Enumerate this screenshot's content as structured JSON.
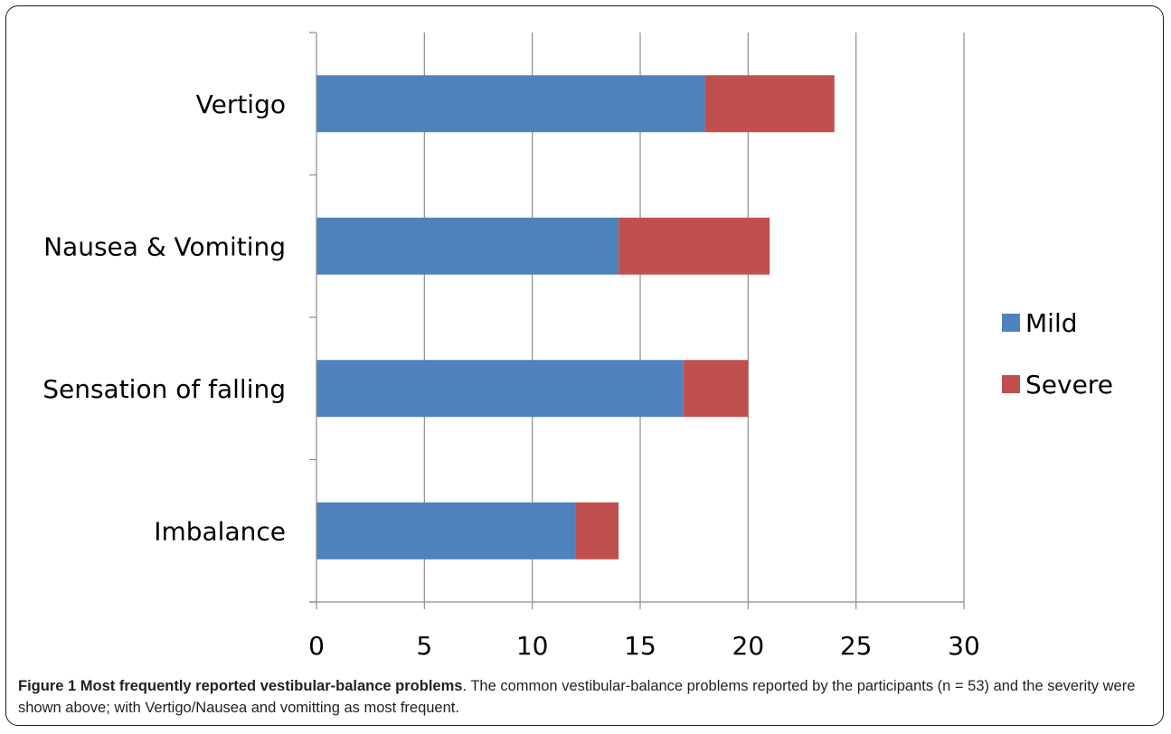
{
  "chart_data": {
    "type": "bar",
    "orientation": "horizontal",
    "stacked": true,
    "categories": [
      "Vertigo",
      "Nausea & Vomiting",
      "Sensation of falling",
      "Imbalance"
    ],
    "series": [
      {
        "name": "Mild",
        "values": [
          18,
          14,
          17,
          12
        ],
        "color": "#4f81bd"
      },
      {
        "name": "Severe",
        "values": [
          6,
          7,
          3,
          2
        ],
        "color": "#c0504d"
      }
    ],
    "xlim": [
      0,
      30
    ],
    "x_ticks": [
      0,
      5,
      10,
      15,
      20,
      25,
      30
    ],
    "grid": "vertical",
    "legend": "right"
  },
  "caption": {
    "title": "Figure 1 Most frequently reported vestibular-balance problems",
    "text": ". The common vestibular-balance problems reported by the participants (n = 53) and the severity were shown above; with Vertigo/Nausea and vomitting as most frequent."
  }
}
